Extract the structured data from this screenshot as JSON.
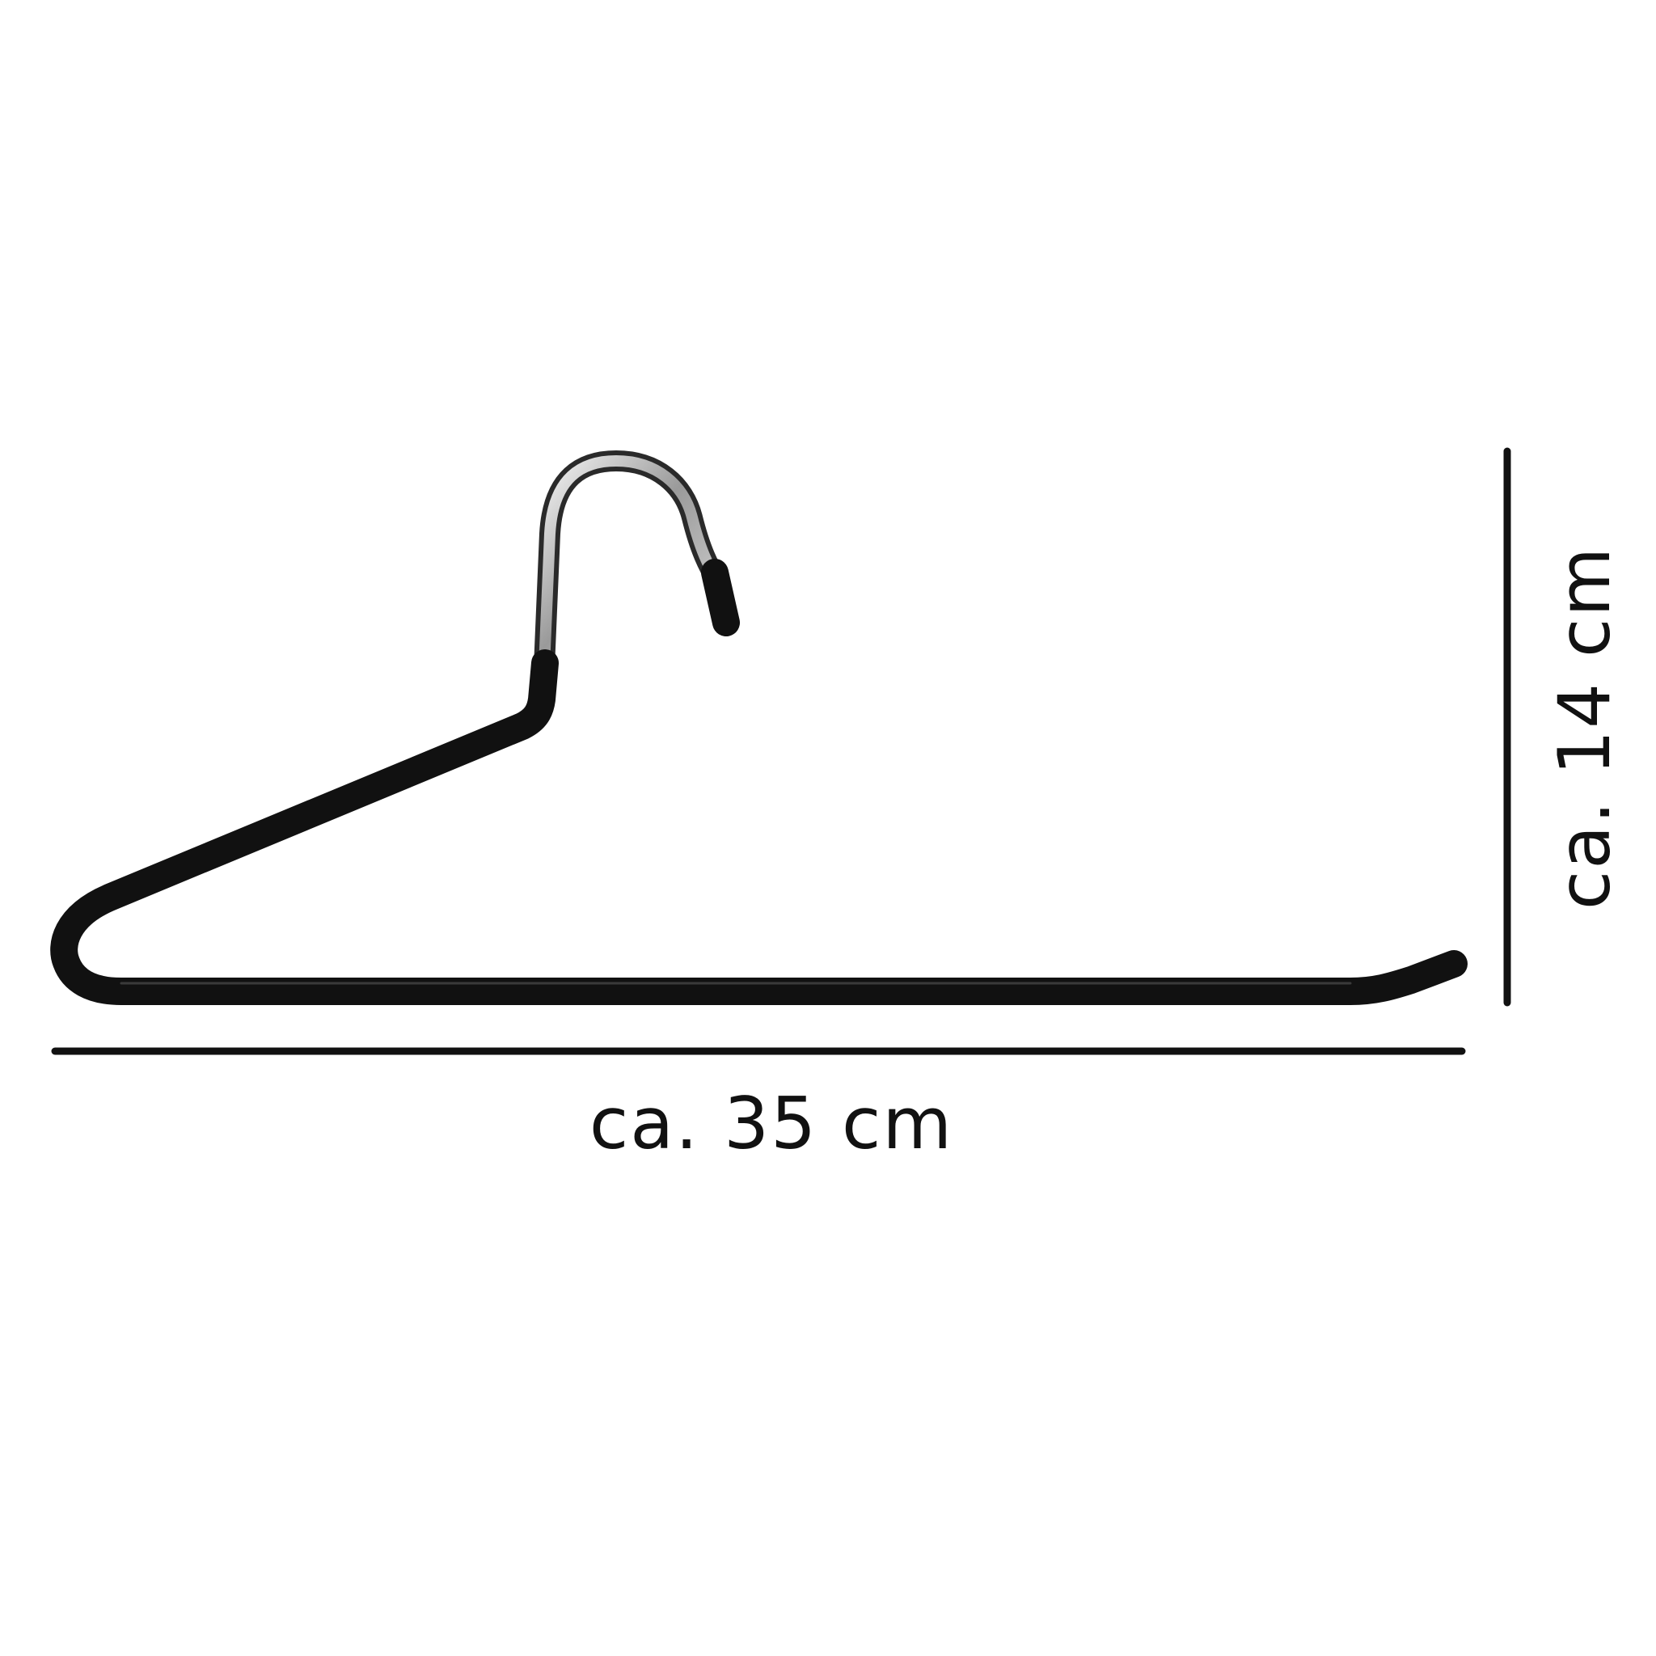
{
  "product": {
    "name": "trouser-hanger",
    "body_color": "#111111",
    "hook_color": "#c8c8c8",
    "background": "#ffffff"
  },
  "dimensions": {
    "width_label": "ca. 35 cm",
    "height_label": "ca. 14 cm",
    "line_color": "#111111"
  }
}
